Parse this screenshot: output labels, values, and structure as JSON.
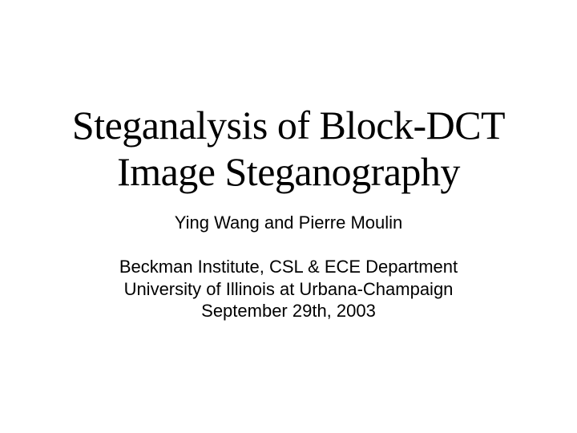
{
  "slide": {
    "title_line1": "Steganalysis of Block-DCT",
    "title_line2": "Image Steganography",
    "authors": "Ying Wang and Pierre Moulin",
    "affiliation_line1": "Beckman Institute, CSL & ECE Department",
    "affiliation_line2": "University of Illinois at Urbana-Champaign",
    "date": "September 29th, 2003",
    "background_color": "#ffffff",
    "title_color": "#000000",
    "body_color": "#000000",
    "title_fontsize": 50,
    "body_fontsize": 22,
    "title_font": "Times New Roman",
    "body_font": "Arial"
  }
}
